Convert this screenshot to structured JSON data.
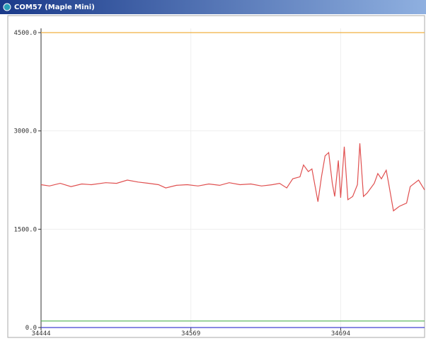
{
  "chart_data": {
    "type": "line",
    "title": "COM57 (Maple Mini)",
    "xlim": [
      34444,
      34764
    ],
    "xticks": [
      34444,
      34569,
      34694
    ],
    "ylim": [
      0,
      4500
    ],
    "yticks": [
      {
        "value": 0,
        "label": "0.0"
      },
      {
        "value": 1500,
        "label": "1500.0"
      },
      {
        "value": 3000,
        "label": "3000.0"
      },
      {
        "value": 4500,
        "label": "4500.0"
      }
    ],
    "grid": true,
    "series": [
      {
        "color": "#e05050",
        "x": [
          34444,
          34451,
          34460,
          34469,
          34478,
          34486,
          34498,
          34507,
          34516,
          34525,
          34534,
          34542,
          34548,
          34557,
          34566,
          34575,
          34584,
          34593,
          34601,
          34610,
          34619,
          34628,
          34637,
          34643,
          34649,
          34654,
          34660,
          34663,
          34667,
          34670,
          34675,
          34678,
          34681,
          34684,
          34687,
          34689,
          34692,
          34694,
          34697,
          34700,
          34704,
          34708,
          34710,
          34713,
          34716,
          34722,
          34725,
          34728,
          34732,
          34734,
          34738,
          34743,
          34749,
          34752,
          34759,
          34764
        ],
        "values": [
          2180,
          2160,
          2200,
          2150,
          2190,
          2180,
          2210,
          2200,
          2250,
          2220,
          2200,
          2180,
          2130,
          2170,
          2180,
          2160,
          2190,
          2170,
          2210,
          2180,
          2190,
          2160,
          2180,
          2200,
          2130,
          2270,
          2300,
          2480,
          2380,
          2420,
          1920,
          2300,
          2620,
          2670,
          2200,
          2000,
          2550,
          1980,
          2760,
          1950,
          2000,
          2180,
          2810,
          2000,
          2050,
          2200,
          2350,
          2270,
          2400,
          2200,
          1780,
          1850,
          1900,
          2150,
          2250,
          2100
        ]
      },
      {
        "color": "#f0b040",
        "x": [
          34444,
          34764
        ],
        "values": [
          4500,
          4500
        ]
      },
      {
        "color": "#50b050",
        "x": [
          34444,
          34764
        ],
        "values": [
          100,
          100
        ]
      },
      {
        "color": "#4040d0",
        "x": [
          34444,
          34764
        ],
        "values": [
          0,
          0
        ]
      }
    ]
  }
}
